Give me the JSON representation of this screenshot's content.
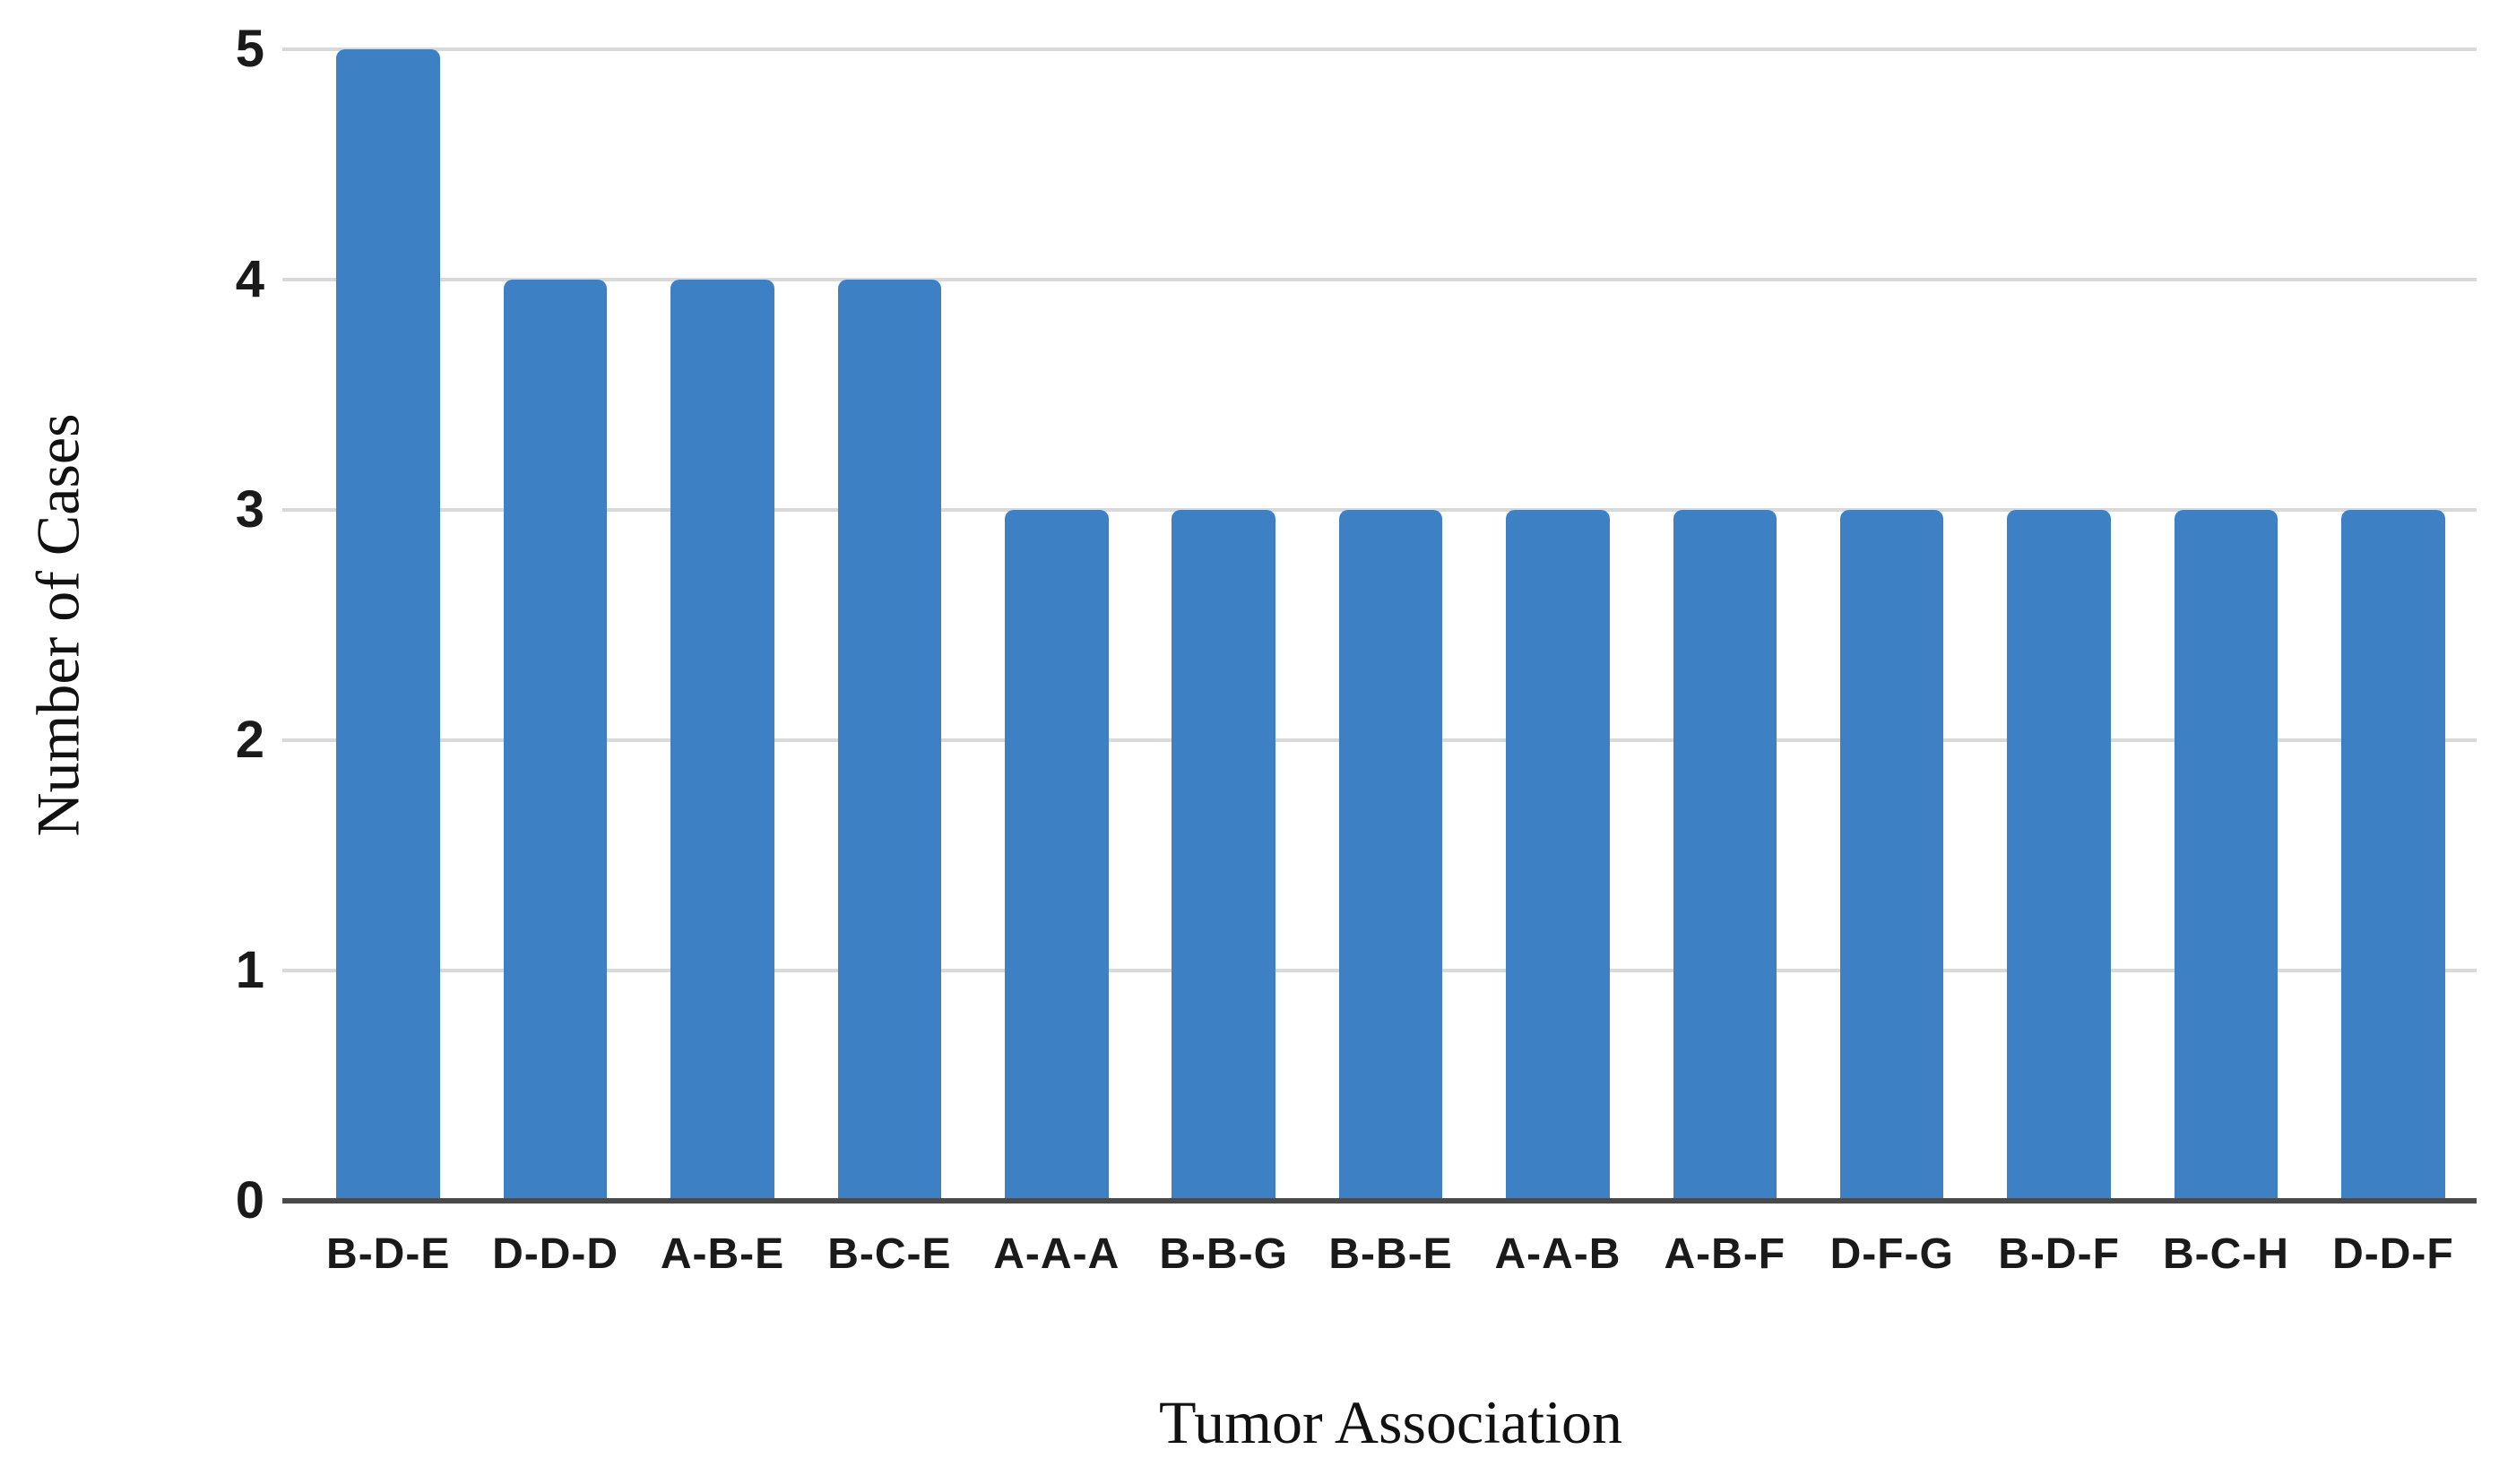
{
  "chart_data": {
    "type": "bar",
    "xlabel": "Tumor Association",
    "ylabel": "Number of Cases",
    "categories": [
      "B-D-E",
      "D-D-D",
      "A-B-E",
      "B-C-E",
      "A-A-A",
      "B-B-G",
      "B-B-E",
      "A-A-B",
      "A-B-F",
      "D-F-G",
      "B-D-F",
      "B-C-H",
      "D-D-F"
    ],
    "values": [
      5,
      4,
      4,
      4,
      3,
      3,
      3,
      3,
      3,
      3,
      3,
      3,
      3
    ],
    "ylim": [
      0,
      5
    ],
    "yticks": [
      0,
      1,
      2,
      3,
      4,
      5
    ],
    "grid": true,
    "legend": false,
    "bar_color": "#3d80c4",
    "gridline_color": "#d9d9d9",
    "axis_line_color": "#4a4a4a"
  }
}
